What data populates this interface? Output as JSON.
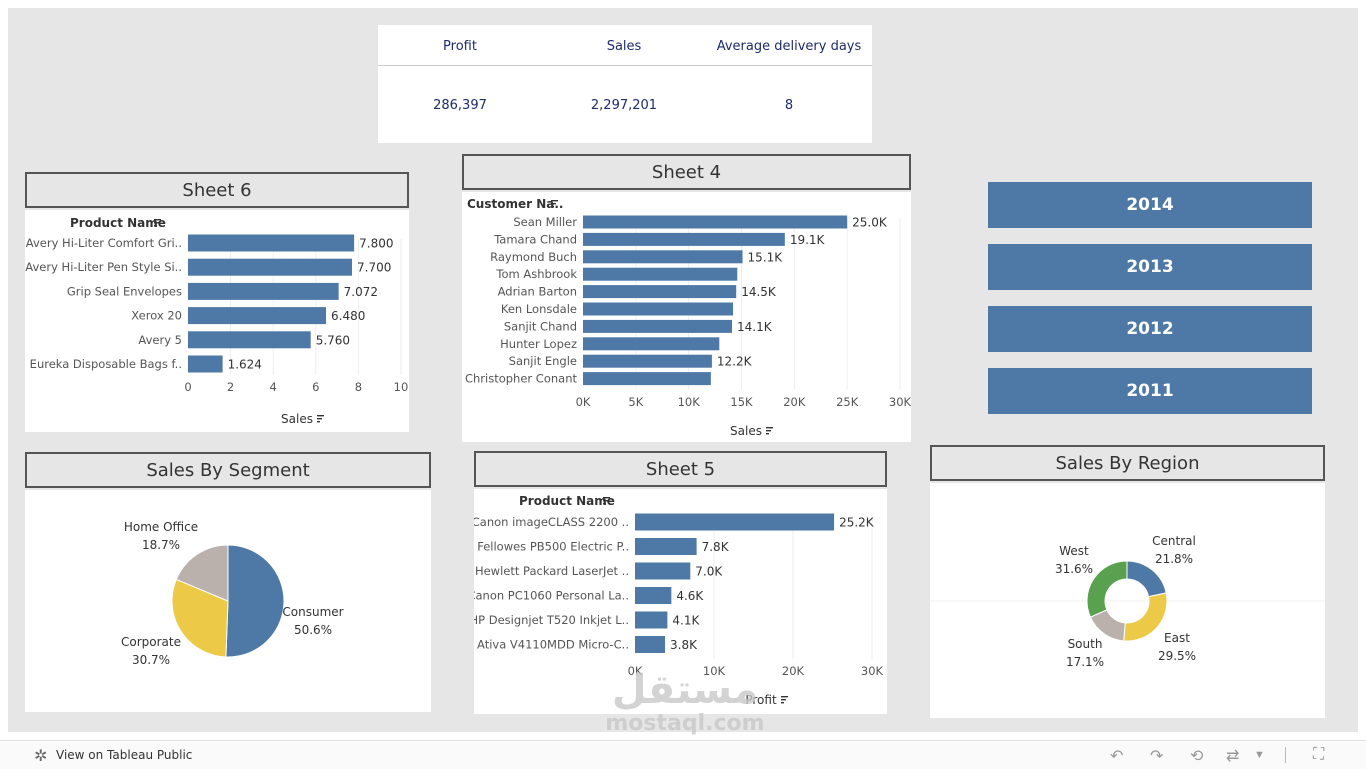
{
  "kpis": {
    "headers": [
      "Profit",
      "Sales",
      "Average delivery days"
    ],
    "values": [
      "286,397",
      "2,297,201",
      "8"
    ]
  },
  "years": [
    "2014",
    "2013",
    "2012",
    "2011"
  ],
  "footer": {
    "link": "View on Tableau Public"
  },
  "watermark": {
    "arabic": "مستقل",
    "latin": "mostaql.com"
  },
  "colors": {
    "bar": "#4e79a7",
    "consumer": "#4e79a7",
    "corporate": "#edc948",
    "home_office": "#bab0ac",
    "west": "#59a14f",
    "central": "#4e79a7",
    "east": "#edc948",
    "south": "#bab0ac"
  },
  "chart_data": [
    {
      "id": "sheet6",
      "type": "bar",
      "title": "Sheet 6",
      "row_header": "Product Name",
      "xlabel": "Sales",
      "categories": [
        "Avery Hi-Liter Comfort Gri..",
        "Avery Hi-Liter Pen Style Si..",
        "Grip Seal Envelopes",
        "Xerox 20",
        "Avery 5",
        "Eureka Disposable Bags f.."
      ],
      "values": [
        7.8,
        7.7,
        7.072,
        6.48,
        5.76,
        1.624
      ],
      "labels": [
        "7.800",
        "7.700",
        "7.072",
        "6.480",
        "5.760",
        "1.624"
      ],
      "xlim": [
        0,
        10
      ],
      "ticks": [
        0,
        2,
        4,
        6,
        8,
        10
      ],
      "tick_labels": [
        "0",
        "2",
        "4",
        "6",
        "8",
        "10"
      ]
    },
    {
      "id": "sheet4",
      "type": "bar",
      "title": "Sheet 4",
      "row_header": "Customer Na..",
      "xlabel": "Sales",
      "categories": [
        "Sean Miller",
        "Tamara Chand",
        "Raymond Buch",
        "Tom Ashbrook",
        "Adrian Barton",
        "Ken Lonsdale",
        "Sanjit Chand",
        "Hunter Lopez",
        "Sanjit Engle",
        "Christopher Conant"
      ],
      "values": [
        25000,
        19100,
        15100,
        14600,
        14500,
        14200,
        14100,
        12900,
        12200,
        12100
      ],
      "labels": [
        "25.0K",
        "19.1K",
        "15.1K",
        "",
        "14.5K",
        "",
        "14.1K",
        "",
        "12.2K",
        ""
      ],
      "xlim": [
        0,
        30000
      ],
      "ticks": [
        0,
        5000,
        10000,
        15000,
        20000,
        25000,
        30000
      ],
      "tick_labels": [
        "0K",
        "5K",
        "10K",
        "15K",
        "20K",
        "25K",
        "30K"
      ]
    },
    {
      "id": "sheet5",
      "type": "bar",
      "title": "Sheet 5",
      "row_header": "Product Name",
      "xlabel": "Profit",
      "categories": [
        "Canon imageCLASS 2200 ..",
        "Fellowes PB500 Electric P..",
        "Hewlett Packard LaserJet ..",
        "Canon PC1060 Personal La..",
        "HP Designjet T520 Inkjet L..",
        "Ativa V4110MDD Micro-C.."
      ],
      "values": [
        25200,
        7800,
        7000,
        4600,
        4100,
        3800
      ],
      "labels": [
        "25.2K",
        "7.8K",
        "7.0K",
        "4.6K",
        "4.1K",
        "3.8K"
      ],
      "xlim": [
        0,
        30000
      ],
      "ticks": [
        0,
        10000,
        20000,
        30000
      ],
      "tick_labels": [
        "0K",
        "10K",
        "20K",
        "30K"
      ]
    },
    {
      "id": "segment",
      "type": "pie",
      "title": "Sales By Segment",
      "slices": [
        {
          "name": "Consumer",
          "value": 50.6,
          "label": "50.6%"
        },
        {
          "name": "Corporate",
          "value": 30.7,
          "label": "30.7%"
        },
        {
          "name": "Home Office",
          "value": 18.7,
          "label": "18.7%"
        }
      ]
    },
    {
      "id": "region",
      "type": "pie",
      "title": "Sales By Region",
      "donut": true,
      "slices": [
        {
          "name": "Central",
          "value": 21.8,
          "label": "21.8%"
        },
        {
          "name": "East",
          "value": 29.5,
          "label": "29.5%"
        },
        {
          "name": "South",
          "value": 17.1,
          "label": "17.1%"
        },
        {
          "name": "West",
          "value": 31.6,
          "label": "31.6%"
        }
      ]
    }
  ]
}
